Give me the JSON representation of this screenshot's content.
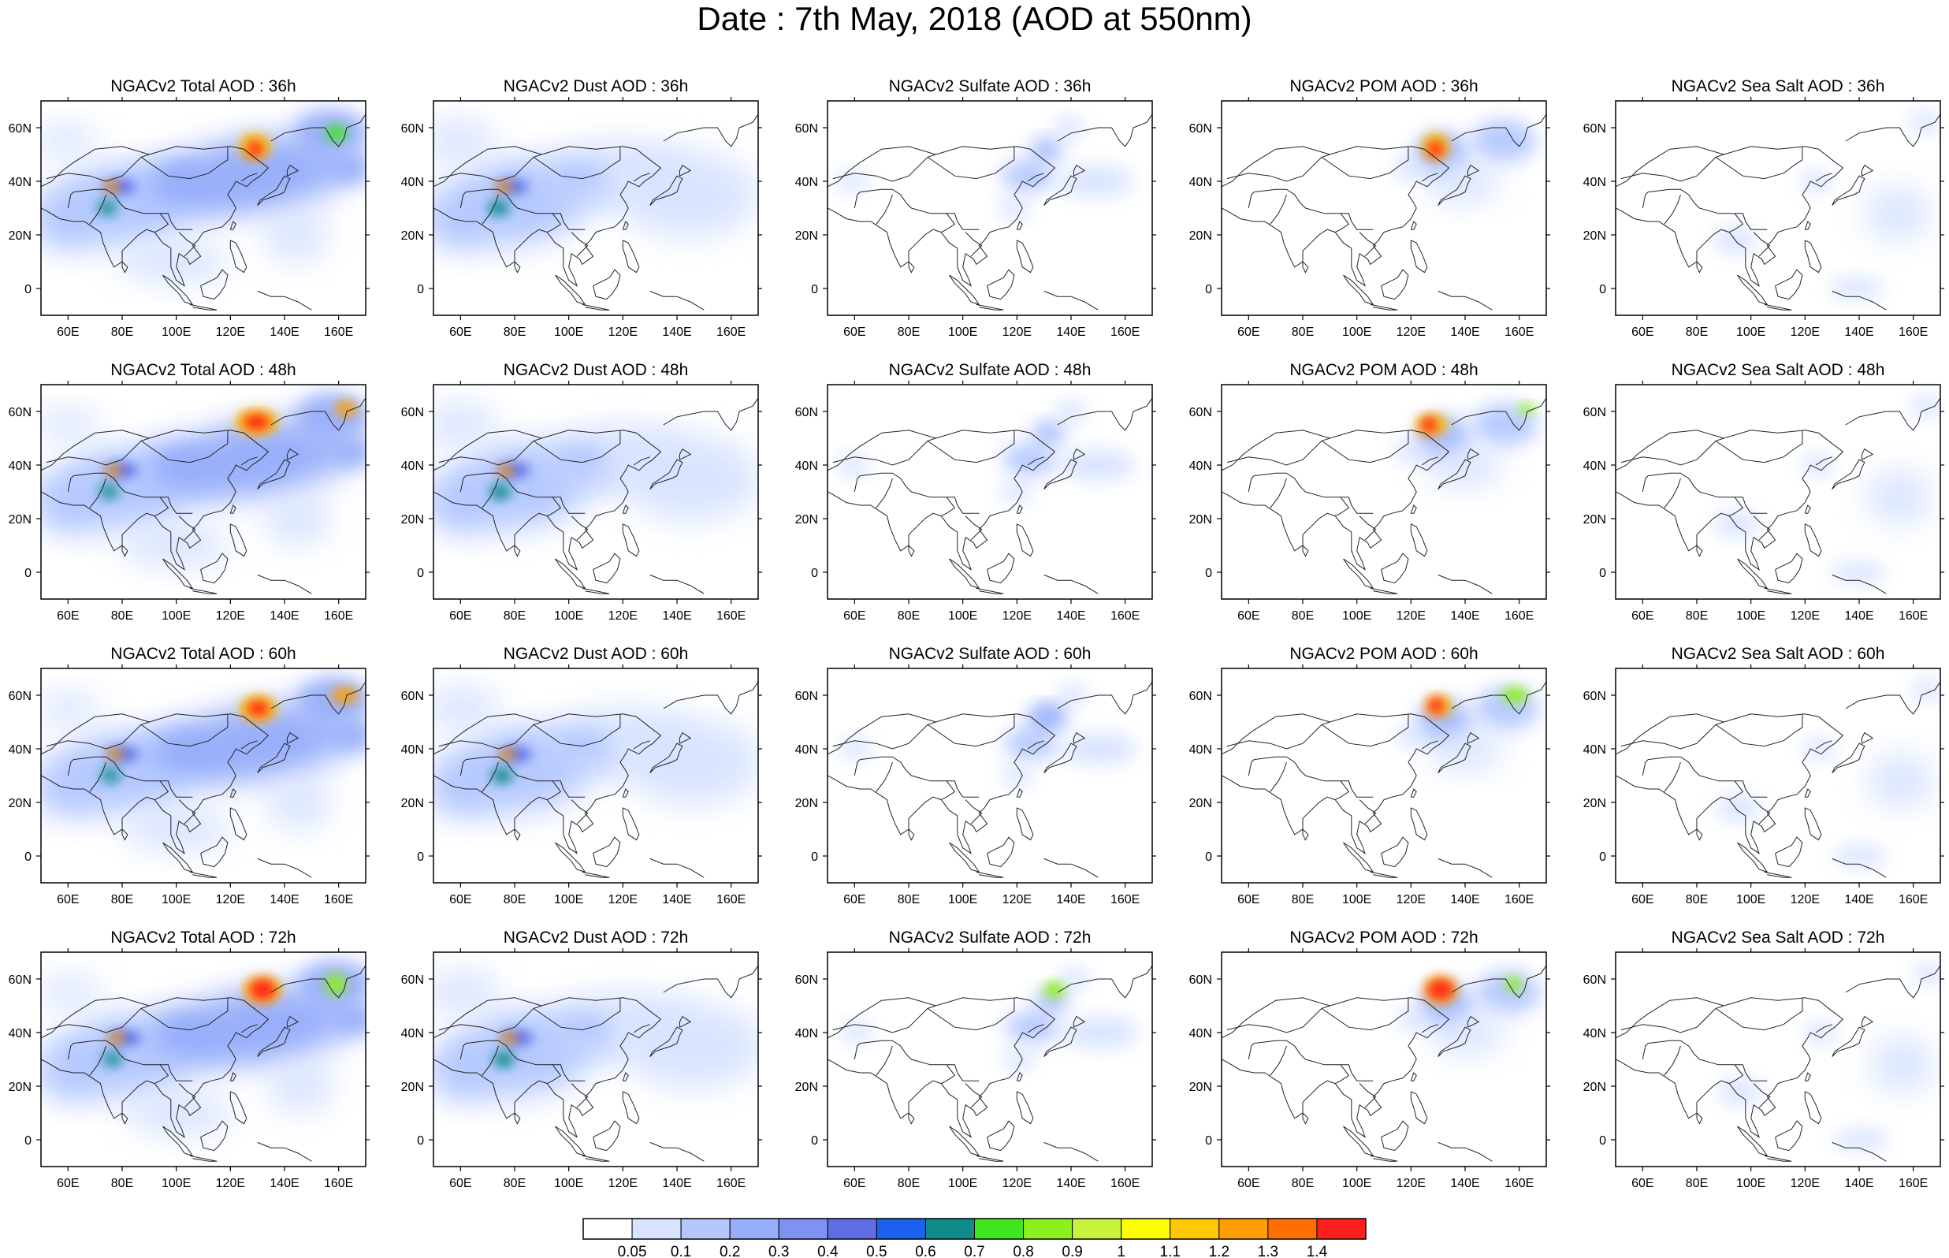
{
  "title": "Date : 7th May, 2018 (AOD at 550nm)",
  "rows": [
    "36h",
    "48h",
    "60h",
    "72h"
  ],
  "columns": [
    "Total",
    "Dust",
    "Sulfate",
    "POM",
    "Sea Salt"
  ],
  "panels": [
    [
      "NGACv2 Total AOD : 36h",
      "NGACv2 Dust AOD : 36h",
      "NGACv2 Sulfate AOD : 36h",
      "NGACv2 POM AOD : 36h",
      "NGACv2 Sea Salt AOD : 36h"
    ],
    [
      "NGACv2 Total AOD : 48h",
      "NGACv2 Dust AOD : 48h",
      "NGACv2 Sulfate AOD : 48h",
      "NGACv2 POM AOD : 48h",
      "NGACv2 Sea Salt AOD : 48h"
    ],
    [
      "NGACv2 Total AOD : 60h",
      "NGACv2 Dust AOD : 60h",
      "NGACv2 Sulfate AOD : 60h",
      "NGACv2 POM AOD : 60h",
      "NGACv2 Sea Salt AOD : 60h"
    ],
    [
      "NGACv2 Total AOD : 72h",
      "NGACv2 Dust AOD : 72h",
      "NGACv2 Sulfate AOD : 72h",
      "NGACv2 POM AOD : 72h",
      "NGACv2 Sea Salt  AOD : 72h"
    ]
  ],
  "x_ticks": [
    "60E",
    "80E",
    "100E",
    "120E",
    "140E",
    "160E"
  ],
  "y_ticks": [
    "60N",
    "40N",
    "20N",
    "0"
  ],
  "x_tick_values": [
    60,
    80,
    100,
    120,
    140,
    160
  ],
  "y_tick_values": [
    60,
    40,
    20,
    0
  ],
  "lon_range": [
    50,
    170
  ],
  "lat_range": [
    -10,
    70
  ],
  "colorbar": {
    "labels": [
      "0.05",
      "0.1",
      "0.2",
      "0.3",
      "0.4",
      "0.5",
      "0.6",
      "0.7",
      "0.8",
      "0.9",
      "1",
      "1.1",
      "1.2",
      "1.3",
      "1.4"
    ],
    "colors": [
      "#ffffff",
      "#d7e3ff",
      "#b4c8ff",
      "#97aefa",
      "#7e92f2",
      "#5f6ee6",
      "#1c62f0",
      "#0e8c8c",
      "#3fe61e",
      "#8cf01e",
      "#c6f43c",
      "#ffff00",
      "#ffc800",
      "#ff9e00",
      "#ff6e00",
      "#ff1e1e"
    ]
  }
}
